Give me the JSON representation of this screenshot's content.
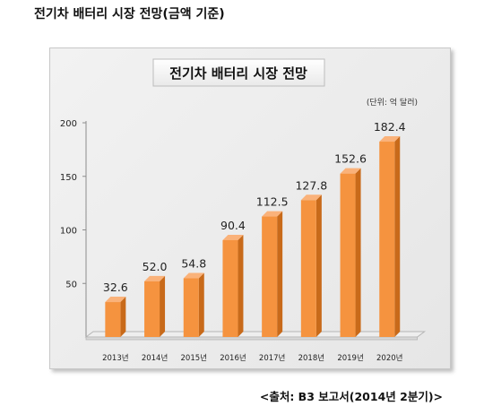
{
  "page": {
    "heading": "전기차 배터리 시장 전망(금액 기준)",
    "source": "<출처: B3 보고서(2014년 2분기)>"
  },
  "chart_data": {
    "type": "bar",
    "title": "전기차 배터리 시장 전망",
    "unit_note": "(단위: 억 달러)",
    "categories": [
      "2013년",
      "2014년",
      "2015년",
      "2016년",
      "2017년",
      "2018년",
      "2019년",
      "2020년"
    ],
    "values": [
      32.6,
      52.0,
      54.8,
      90.4,
      112.5,
      127.8,
      152.6,
      182.4
    ],
    "value_labels": [
      "32.6",
      "52.0",
      "54.8",
      "90.4",
      "112.5",
      "127.8",
      "152.6",
      "182.4"
    ],
    "ylim": [
      0,
      200
    ],
    "yticks": [
      "200",
      "150",
      "100",
      "50"
    ],
    "ytick_values": [
      200,
      150,
      100,
      50
    ],
    "grid": false,
    "legend": "none",
    "colors": {
      "bar_front": "#f5933f",
      "bar_side": "#c86a1a",
      "bar_top": "#fab27a",
      "floor": "#d9d9d9"
    }
  }
}
